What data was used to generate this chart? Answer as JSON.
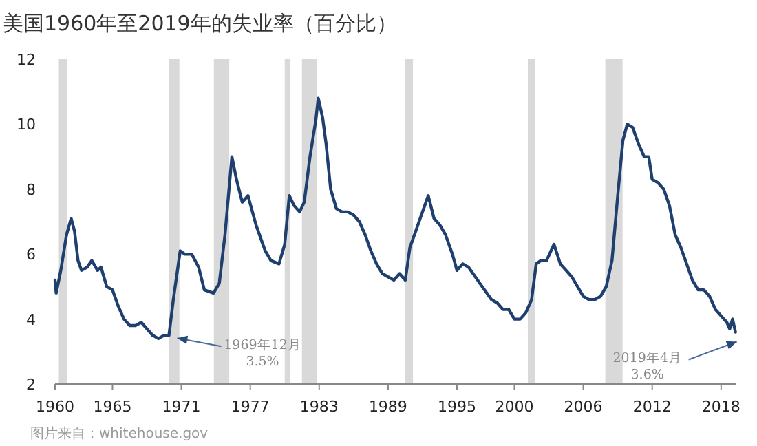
{
  "chart_data": {
    "type": "line",
    "title": "美国1960年至2019年的失业率（百分比）",
    "x": [
      1960.0,
      1960.1,
      1960.5,
      1961.0,
      1961.4,
      1961.7,
      1962.0,
      1962.3,
      1962.8,
      1963.2,
      1963.7,
      1964.0,
      1964.5,
      1965.0,
      1965.5,
      1966.0,
      1966.5,
      1967.0,
      1967.5,
      1968.0,
      1968.5,
      1969.0,
      1969.5,
      1969.92,
      1970.3,
      1970.9,
      1971.3,
      1971.9,
      1972.5,
      1973.0,
      1973.8,
      1974.3,
      1974.8,
      1975.4,
      1975.8,
      1976.3,
      1976.8,
      1977.5,
      1978.3,
      1978.8,
      1979.5,
      1980.0,
      1980.4,
      1980.8,
      1981.3,
      1981.7,
      1982.2,
      1982.7,
      1982.92,
      1983.3,
      1983.6,
      1984.0,
      1984.5,
      1985.0,
      1985.5,
      1986.0,
      1986.5,
      1987.0,
      1987.5,
      1988.0,
      1988.5,
      1989.0,
      1989.5,
      1990.0,
      1990.5,
      1990.9,
      1991.5,
      1992.0,
      1992.5,
      1993.0,
      1993.5,
      1994.0,
      1994.6,
      1995.0,
      1995.5,
      1996.0,
      1996.6,
      1997.2,
      1997.6,
      1998.0,
      1998.5,
      1999.0,
      1999.5,
      2000.0,
      2000.5,
      2001.0,
      2001.5,
      2001.9,
      2002.3,
      2002.8,
      2003.45,
      2004.0,
      2004.5,
      2005.0,
      2005.5,
      2006.0,
      2006.5,
      2007.0,
      2007.5,
      2008.0,
      2008.5,
      2009.0,
      2009.45,
      2009.83,
      2010.3,
      2010.8,
      2011.3,
      2011.7,
      2012.0,
      2012.5,
      2013.0,
      2013.5,
      2014.0,
      2014.5,
      2015.0,
      2015.5,
      2016.0,
      2016.5,
      2017.0,
      2017.5,
      2018.0,
      2018.5,
      2018.75,
      2019.0,
      2019.25
    ],
    "series": [
      {
        "color": "#1f3f6e",
        "values": [
          5.2,
          4.8,
          5.5,
          6.6,
          7.1,
          6.7,
          5.8,
          5.5,
          5.6,
          5.8,
          5.5,
          5.6,
          5.0,
          4.9,
          4.4,
          4.0,
          3.8,
          3.8,
          3.9,
          3.7,
          3.5,
          3.4,
          3.5,
          3.5,
          4.6,
          6.1,
          6.0,
          6.0,
          5.6,
          4.9,
          4.8,
          5.1,
          6.6,
          9.0,
          8.3,
          7.6,
          7.8,
          6.9,
          6.1,
          5.8,
          5.7,
          6.3,
          7.8,
          7.5,
          7.3,
          7.6,
          9.0,
          10.1,
          10.8,
          10.2,
          9.4,
          8.0,
          7.4,
          7.3,
          7.3,
          7.2,
          7.0,
          6.6,
          6.1,
          5.7,
          5.4,
          5.3,
          5.2,
          5.4,
          5.2,
          6.2,
          6.8,
          7.3,
          7.8,
          7.1,
          6.9,
          6.6,
          6.0,
          5.5,
          5.7,
          5.6,
          5.3,
          5.0,
          4.8,
          4.6,
          4.5,
          4.3,
          4.3,
          4.0,
          4.0,
          4.2,
          4.6,
          5.7,
          5.8,
          5.8,
          6.3,
          5.7,
          5.5,
          5.3,
          5.0,
          4.7,
          4.6,
          4.6,
          4.7,
          5.0,
          5.8,
          7.8,
          9.5,
          10.0,
          9.9,
          9.4,
          9.0,
          9.0,
          8.3,
          8.2,
          8.0,
          7.5,
          6.6,
          6.2,
          5.7,
          5.2,
          4.9,
          4.9,
          4.7,
          4.3,
          4.1,
          3.9,
          3.7,
          4.0,
          3.6
        ]
      }
    ],
    "xlim": [
      1960,
      2019.33
    ],
    "xticks": [
      1960,
      1965,
      1971,
      1977,
      1983,
      1989,
      1995,
      2000,
      2006,
      2012,
      2018
    ],
    "ylim": [
      2,
      12
    ],
    "yticks": [
      2,
      4,
      6,
      8,
      10,
      12
    ],
    "grid": false,
    "marker": "none",
    "line_style": "solid",
    "bands": [
      {
        "axis": "x",
        "from": 1960.33,
        "to": 1961.08,
        "color": "#d9d9d9"
      },
      {
        "axis": "x",
        "from": 1969.92,
        "to": 1970.83,
        "color": "#d9d9d9"
      },
      {
        "axis": "x",
        "from": 1973.83,
        "to": 1975.17,
        "color": "#d9d9d9"
      },
      {
        "axis": "x",
        "from": 1980.0,
        "to": 1980.5,
        "color": "#d9d9d9"
      },
      {
        "axis": "x",
        "from": 1981.5,
        "to": 1982.83,
        "color": "#d9d9d9"
      },
      {
        "axis": "x",
        "from": 1990.5,
        "to": 1991.17,
        "color": "#d9d9d9"
      },
      {
        "axis": "x",
        "from": 2001.17,
        "to": 2001.83,
        "color": "#d9d9d9"
      },
      {
        "axis": "x",
        "from": 2007.92,
        "to": 2009.42,
        "color": "#d9d9d9"
      }
    ],
    "annotations": [
      {
        "text": "1969年12月\n3.5%",
        "x": 1969.92,
        "y": 3.5
      },
      {
        "text": "2019年4月\n3.6%",
        "x": 2019.25,
        "y": 3.6
      },
      "图片来自：whitehouse.gov"
    ]
  }
}
